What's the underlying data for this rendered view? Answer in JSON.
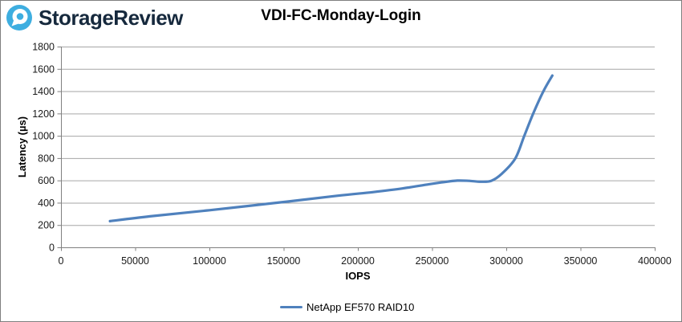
{
  "brand": {
    "name": "StorageReview",
    "logo_color": "#3EAEE0"
  },
  "chart_data": {
    "type": "line",
    "title": "VDI-FC-Monday-Login",
    "xlabel": "IOPS",
    "ylabel": "Latency (µs)",
    "xlim": [
      0,
      400000
    ],
    "ylim": [
      0,
      1800
    ],
    "x_ticks": [
      0,
      50000,
      100000,
      150000,
      200000,
      250000,
      300000,
      350000,
      400000
    ],
    "y_ticks": [
      0,
      200,
      400,
      600,
      800,
      1000,
      1200,
      1400,
      1600,
      1800
    ],
    "grid": "horizontal",
    "legend_position": "bottom-center",
    "series": [
      {
        "name": "NetApp EF570 RAID10",
        "color": "#4F81BD",
        "points": [
          [
            33000,
            235
          ],
          [
            60000,
            278
          ],
          [
            100000,
            333
          ],
          [
            146000,
            400
          ],
          [
            186000,
            462
          ],
          [
            210000,
            495
          ],
          [
            230000,
            528
          ],
          [
            248000,
            566
          ],
          [
            258000,
            585
          ],
          [
            267000,
            598
          ],
          [
            275000,
            596
          ],
          [
            283000,
            588
          ],
          [
            290000,
            597
          ],
          [
            297000,
            660
          ],
          [
            306000,
            795
          ],
          [
            312000,
            995
          ],
          [
            318000,
            1195
          ],
          [
            325000,
            1400
          ],
          [
            331000,
            1540
          ]
        ]
      }
    ]
  }
}
